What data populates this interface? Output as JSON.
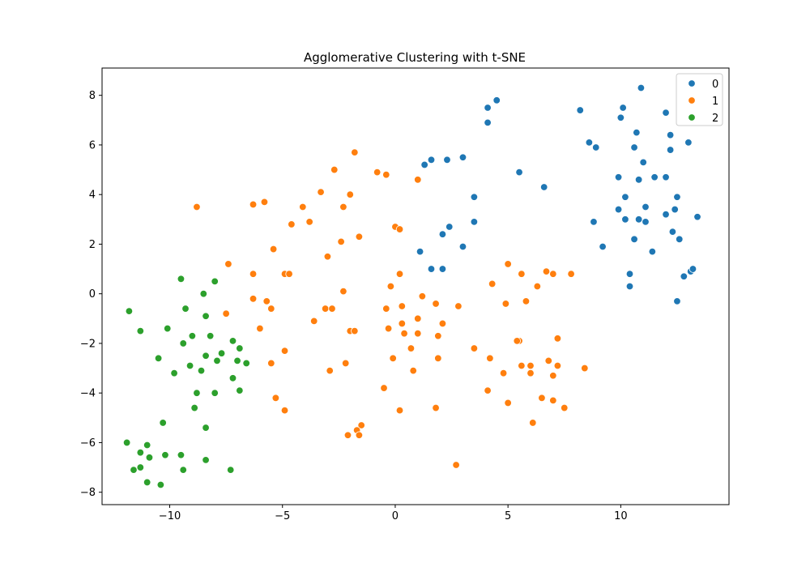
{
  "chart_data": {
    "type": "scatter",
    "title": "Agglomerative Clustering with t-SNE",
    "xlabel": "",
    "ylabel": "",
    "xlim": [
      -13.0,
      14.8
    ],
    "ylim": [
      -8.5,
      9.1
    ],
    "xticks": [
      -10,
      -5,
      0,
      5,
      10
    ],
    "yticks": [
      -8,
      -6,
      -4,
      -2,
      0,
      2,
      4,
      6,
      8
    ],
    "xtick_labels": [
      "−10",
      "−5",
      "0",
      "5",
      "10"
    ],
    "ytick_labels": [
      "−8",
      "−6",
      "−4",
      "−2",
      "0",
      "2",
      "4",
      "6",
      "8"
    ],
    "grid": false,
    "legend_position": "top-right",
    "series": [
      {
        "name": "0",
        "color": "#1f77b4",
        "points": [
          [
            4.5,
            7.8
          ],
          [
            4.1,
            7.5
          ],
          [
            4.1,
            6.9
          ],
          [
            8.2,
            7.4
          ],
          [
            10.9,
            8.3
          ],
          [
            10.1,
            7.5
          ],
          [
            10.0,
            7.1
          ],
          [
            12.0,
            7.3
          ],
          [
            12.2,
            6.4
          ],
          [
            10.7,
            6.5
          ],
          [
            8.6,
            6.1
          ],
          [
            8.9,
            5.9
          ],
          [
            10.6,
            5.9
          ],
          [
            12.2,
            5.8
          ],
          [
            13.0,
            6.1
          ],
          [
            11.0,
            5.3
          ],
          [
            1.3,
            5.2
          ],
          [
            1.6,
            5.4
          ],
          [
            2.3,
            5.4
          ],
          [
            3.0,
            5.5
          ],
          [
            5.5,
            4.9
          ],
          [
            6.6,
            4.3
          ],
          [
            9.9,
            4.7
          ],
          [
            10.8,
            4.6
          ],
          [
            11.5,
            4.7
          ],
          [
            12.0,
            4.7
          ],
          [
            10.2,
            3.9
          ],
          [
            11.1,
            3.5
          ],
          [
            12.5,
            3.9
          ],
          [
            3.5,
            3.9
          ],
          [
            9.9,
            3.4
          ],
          [
            12.4,
            3.4
          ],
          [
            10.2,
            3.0
          ],
          [
            10.8,
            3.0
          ],
          [
            11.1,
            2.9
          ],
          [
            8.8,
            2.9
          ],
          [
            3.5,
            2.9
          ],
          [
            2.4,
            2.7
          ],
          [
            13.4,
            3.1
          ],
          [
            12.0,
            3.2
          ],
          [
            2.1,
            2.4
          ],
          [
            12.3,
            2.5
          ],
          [
            12.6,
            2.2
          ],
          [
            10.6,
            2.2
          ],
          [
            3.0,
            1.9
          ],
          [
            9.2,
            1.9
          ],
          [
            1.1,
            1.7
          ],
          [
            11.4,
            1.7
          ],
          [
            1.6,
            1.0
          ],
          [
            2.1,
            1.0
          ],
          [
            13.1,
            0.9
          ],
          [
            13.2,
            1.0
          ],
          [
            12.8,
            0.7
          ],
          [
            10.4,
            0.8
          ],
          [
            10.4,
            0.3
          ],
          [
            12.5,
            -0.3
          ]
        ]
      },
      {
        "name": "1",
        "color": "#ff7f0e",
        "points": [
          [
            -1.8,
            5.7
          ],
          [
            -2.7,
            5.0
          ],
          [
            -0.8,
            4.9
          ],
          [
            -0.4,
            4.8
          ],
          [
            1.0,
            4.6
          ],
          [
            -3.3,
            4.1
          ],
          [
            -2.0,
            4.0
          ],
          [
            -6.3,
            3.6
          ],
          [
            -5.8,
            3.7
          ],
          [
            -8.8,
            3.5
          ],
          [
            -4.1,
            3.5
          ],
          [
            -2.3,
            3.5
          ],
          [
            -4.6,
            2.8
          ],
          [
            -3.8,
            2.9
          ],
          [
            0.0,
            2.7
          ],
          [
            0.2,
            2.6
          ],
          [
            -1.6,
            2.3
          ],
          [
            -2.4,
            2.1
          ],
          [
            -5.4,
            1.8
          ],
          [
            -3.0,
            1.5
          ],
          [
            -7.4,
            1.2
          ],
          [
            5.0,
            1.2
          ],
          [
            -6.3,
            0.8
          ],
          [
            -4.9,
            0.8
          ],
          [
            -4.7,
            0.8
          ],
          [
            0.2,
            0.8
          ],
          [
            5.6,
            0.8
          ],
          [
            6.7,
            0.9
          ],
          [
            7.0,
            0.8
          ],
          [
            7.8,
            0.8
          ],
          [
            -0.2,
            0.3
          ],
          [
            4.3,
            0.4
          ],
          [
            6.3,
            0.3
          ],
          [
            -2.3,
            0.1
          ],
          [
            1.2,
            -0.1
          ],
          [
            -6.3,
            -0.2
          ],
          [
            -5.7,
            -0.3
          ],
          [
            5.8,
            -0.3
          ],
          [
            4.9,
            -0.4
          ],
          [
            1.8,
            -0.4
          ],
          [
            2.8,
            -0.5
          ],
          [
            0.3,
            -0.5
          ],
          [
            -5.5,
            -0.6
          ],
          [
            -3.1,
            -0.6
          ],
          [
            -2.8,
            -0.6
          ],
          [
            -0.4,
            -0.6
          ],
          [
            -7.5,
            -0.8
          ],
          [
            -3.6,
            -1.1
          ],
          [
            1.0,
            -1.0
          ],
          [
            2.1,
            -1.2
          ],
          [
            0.3,
            -1.2
          ],
          [
            -6.0,
            -1.4
          ],
          [
            -0.3,
            -1.4
          ],
          [
            -2.0,
            -1.5
          ],
          [
            -1.8,
            -1.5
          ],
          [
            0.4,
            -1.6
          ],
          [
            1.0,
            -1.6
          ],
          [
            1.9,
            -1.7
          ],
          [
            7.2,
            -1.8
          ],
          [
            5.5,
            -1.9
          ],
          [
            5.4,
            -1.9
          ],
          [
            -5.5,
            -2.8
          ],
          [
            -4.9,
            -2.3
          ],
          [
            -2.2,
            -2.8
          ],
          [
            -0.1,
            -2.6
          ],
          [
            0.7,
            -2.2
          ],
          [
            3.5,
            -2.2
          ],
          [
            4.2,
            -2.6
          ],
          [
            1.9,
            -2.6
          ],
          [
            6.8,
            -2.7
          ],
          [
            5.6,
            -2.9
          ],
          [
            6.0,
            -2.9
          ],
          [
            7.2,
            -2.9
          ],
          [
            8.4,
            -3.0
          ],
          [
            -2.9,
            -3.1
          ],
          [
            0.8,
            -3.1
          ],
          [
            4.8,
            -3.2
          ],
          [
            6.0,
            -3.2
          ],
          [
            7.0,
            -3.3
          ],
          [
            -0.5,
            -3.8
          ],
          [
            4.1,
            -3.9
          ],
          [
            -5.3,
            -4.2
          ],
          [
            6.5,
            -4.2
          ],
          [
            7.0,
            -4.3
          ],
          [
            5.0,
            -4.4
          ],
          [
            7.5,
            -4.6
          ],
          [
            1.8,
            -4.6
          ],
          [
            -4.9,
            -4.7
          ],
          [
            0.2,
            -4.7
          ],
          [
            6.1,
            -5.2
          ],
          [
            -1.5,
            -5.3
          ],
          [
            -1.7,
            -5.5
          ],
          [
            -1.6,
            -5.7
          ],
          [
            -2.1,
            -5.7
          ],
          [
            2.7,
            -6.9
          ]
        ]
      },
      {
        "name": "2",
        "color": "#2ca02c",
        "points": [
          [
            -9.5,
            0.6
          ],
          [
            -8.0,
            0.5
          ],
          [
            -8.5,
            0.0
          ],
          [
            -11.8,
            -0.7
          ],
          [
            -9.3,
            -0.6
          ],
          [
            -8.4,
            -0.9
          ],
          [
            -10.1,
            -1.4
          ],
          [
            -11.3,
            -1.5
          ],
          [
            -9.0,
            -1.7
          ],
          [
            -8.2,
            -1.7
          ],
          [
            -9.4,
            -2.0
          ],
          [
            -7.2,
            -1.9
          ],
          [
            -6.9,
            -2.2
          ],
          [
            -7.7,
            -2.4
          ],
          [
            -8.4,
            -2.5
          ],
          [
            -10.5,
            -2.6
          ],
          [
            -7.9,
            -2.7
          ],
          [
            -7.0,
            -2.7
          ],
          [
            -6.6,
            -2.8
          ],
          [
            -9.1,
            -2.9
          ],
          [
            -8.6,
            -3.1
          ],
          [
            -9.8,
            -3.2
          ],
          [
            -7.2,
            -3.4
          ],
          [
            -6.9,
            -3.9
          ],
          [
            -8.8,
            -4.0
          ],
          [
            -8.0,
            -4.0
          ],
          [
            -8.9,
            -4.6
          ],
          [
            -10.3,
            -5.2
          ],
          [
            -8.4,
            -5.4
          ],
          [
            -11.9,
            -6.0
          ],
          [
            -11.0,
            -6.1
          ],
          [
            -11.3,
            -6.4
          ],
          [
            -10.9,
            -6.6
          ],
          [
            -10.2,
            -6.5
          ],
          [
            -9.5,
            -6.5
          ],
          [
            -8.4,
            -6.7
          ],
          [
            -11.6,
            -7.1
          ],
          [
            -11.3,
            -7.0
          ],
          [
            -9.4,
            -7.1
          ],
          [
            -7.3,
            -7.1
          ],
          [
            -11.0,
            -7.6
          ],
          [
            -10.4,
            -7.7
          ]
        ]
      }
    ]
  }
}
